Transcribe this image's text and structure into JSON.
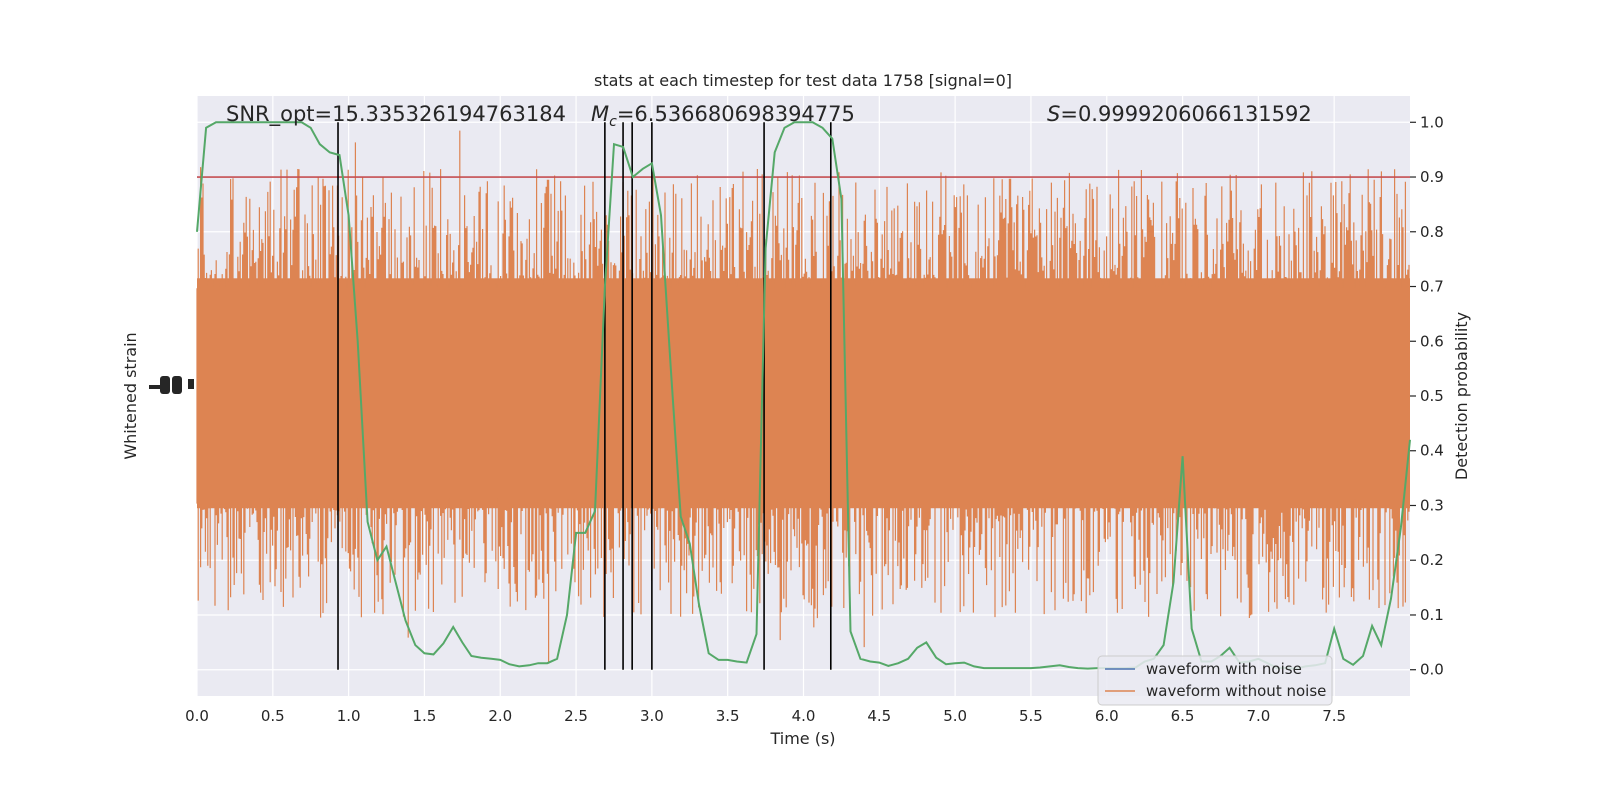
{
  "chart_data": {
    "type": "line",
    "title": "stats at each timestep for test data 1758 [signal=0]",
    "annotations": {
      "snr": "SNR_opt=15.335326194763184",
      "mc_value": "=6.536680698394775",
      "s_value": "=0.9999206066131592"
    },
    "xlabel": "Time (s)",
    "ylabel_left": "Whitened strain",
    "ylabel_right": "Detection probability",
    "xlim": [
      0,
      8.0
    ],
    "ylim_right": [
      -0.048,
      1.048
    ],
    "x_ticks": [
      "0.0",
      "0.5",
      "1.0",
      "1.5",
      "2.0",
      "2.5",
      "3.0",
      "3.5",
      "4.0",
      "4.5",
      "5.0",
      "5.5",
      "6.0",
      "6.5",
      "7.0",
      "7.5"
    ],
    "y_ticks_right": [
      "0.0",
      "0.1",
      "0.2",
      "0.3",
      "0.4",
      "0.5",
      "0.6",
      "0.7",
      "0.8",
      "0.9",
      "1.0"
    ],
    "grid": true,
    "threshold": 0.9,
    "detection_markers": [
      0.93,
      2.69,
      2.81,
      2.87,
      3.0,
      3.74,
      4.18
    ],
    "legend": {
      "position": "lower right",
      "entries": [
        "waveform with noise",
        "waveform without noise"
      ]
    },
    "series": [
      {
        "name": "detection probability",
        "x": [
          0.0,
          0.06,
          0.125,
          0.19,
          0.25,
          0.31,
          0.375,
          0.44,
          0.5,
          0.56,
          0.625,
          0.69,
          0.75,
          0.81,
          0.875,
          0.94,
          1.0,
          1.06,
          1.125,
          1.19,
          1.25,
          1.31,
          1.375,
          1.44,
          1.5,
          1.56,
          1.625,
          1.69,
          1.75,
          1.81,
          1.875,
          1.94,
          2.0,
          2.06,
          2.125,
          2.19,
          2.25,
          2.31,
          2.375,
          2.44,
          2.5,
          2.56,
          2.625,
          2.69,
          2.75,
          2.81,
          2.875,
          2.94,
          3.0,
          3.06,
          3.125,
          3.19,
          3.25,
          3.31,
          3.375,
          3.44,
          3.5,
          3.56,
          3.625,
          3.69,
          3.75,
          3.81,
          3.875,
          3.94,
          4.0,
          4.06,
          4.125,
          4.19,
          4.25,
          4.31,
          4.375,
          4.44,
          4.5,
          4.56,
          4.625,
          4.69,
          4.75,
          4.81,
          4.875,
          4.94,
          5.0,
          5.06,
          5.125,
          5.19,
          5.25,
          5.31,
          5.375,
          5.44,
          5.5,
          5.56,
          5.625,
          5.69,
          5.75,
          5.81,
          5.875,
          5.94,
          6.0,
          6.06,
          6.125,
          6.19,
          6.25,
          6.31,
          6.375,
          6.44,
          6.5,
          6.56,
          6.625,
          6.69,
          6.75,
          6.81,
          6.875,
          6.94,
          7.0,
          7.06,
          7.125,
          7.19,
          7.25,
          7.31,
          7.375,
          7.44,
          7.5,
          7.56,
          7.625,
          7.69,
          7.75,
          7.81,
          7.875,
          7.94,
          8.0
        ],
        "values": [
          0.8,
          0.99,
          1.0,
          1.0,
          1.0,
          1.0,
          1.0,
          1.0,
          1.0,
          1.0,
          1.0,
          1.0,
          0.99,
          0.96,
          0.945,
          0.94,
          0.83,
          0.6,
          0.27,
          0.2,
          0.225,
          0.16,
          0.09,
          0.045,
          0.03,
          0.028,
          0.048,
          0.078,
          0.05,
          0.025,
          0.022,
          0.02,
          0.018,
          0.01,
          0.006,
          0.008,
          0.012,
          0.012,
          0.02,
          0.1,
          0.25,
          0.25,
          0.29,
          0.7,
          0.96,
          0.955,
          0.9,
          0.915,
          0.925,
          0.83,
          0.55,
          0.28,
          0.23,
          0.12,
          0.03,
          0.018,
          0.018,
          0.015,
          0.013,
          0.065,
          0.77,
          0.945,
          0.99,
          1.0,
          1.0,
          1.0,
          0.99,
          0.97,
          0.86,
          0.07,
          0.02,
          0.015,
          0.013,
          0.007,
          0.012,
          0.02,
          0.04,
          0.05,
          0.022,
          0.01,
          0.012,
          0.013,
          0.006,
          0.003,
          0.003,
          0.003,
          0.003,
          0.003,
          0.003,
          0.004,
          0.006,
          0.008,
          0.005,
          0.003,
          0.002,
          0.003,
          0.003,
          0.003,
          0.003,
          0.004,
          0.015,
          0.02,
          0.045,
          0.16,
          0.39,
          0.075,
          0.015,
          0.015,
          0.025,
          0.04,
          0.013,
          0.015,
          0.02,
          0.012,
          0.003,
          0.003,
          0.002,
          0.006,
          0.008,
          0.012,
          0.075,
          0.02,
          0.009,
          0.025,
          0.08,
          0.045,
          0.13,
          0.26,
          0.42
        ]
      },
      {
        "name": "waveform with noise",
        "values": []
      },
      {
        "name": "waveform without noise",
        "note_values": "dense random noise rendered procedurally",
        "band_low": 0.295,
        "band_high": 0.715
      }
    ]
  },
  "colors": {
    "plot_bg": "#eaeaf2",
    "grid": "#ffffff",
    "noise": "#dd8452",
    "noise_legend": "#dd8452",
    "with_noise": "#4c72b0",
    "prob": "#55a868",
    "threshold": "#c44e52",
    "markers": "#000000"
  }
}
